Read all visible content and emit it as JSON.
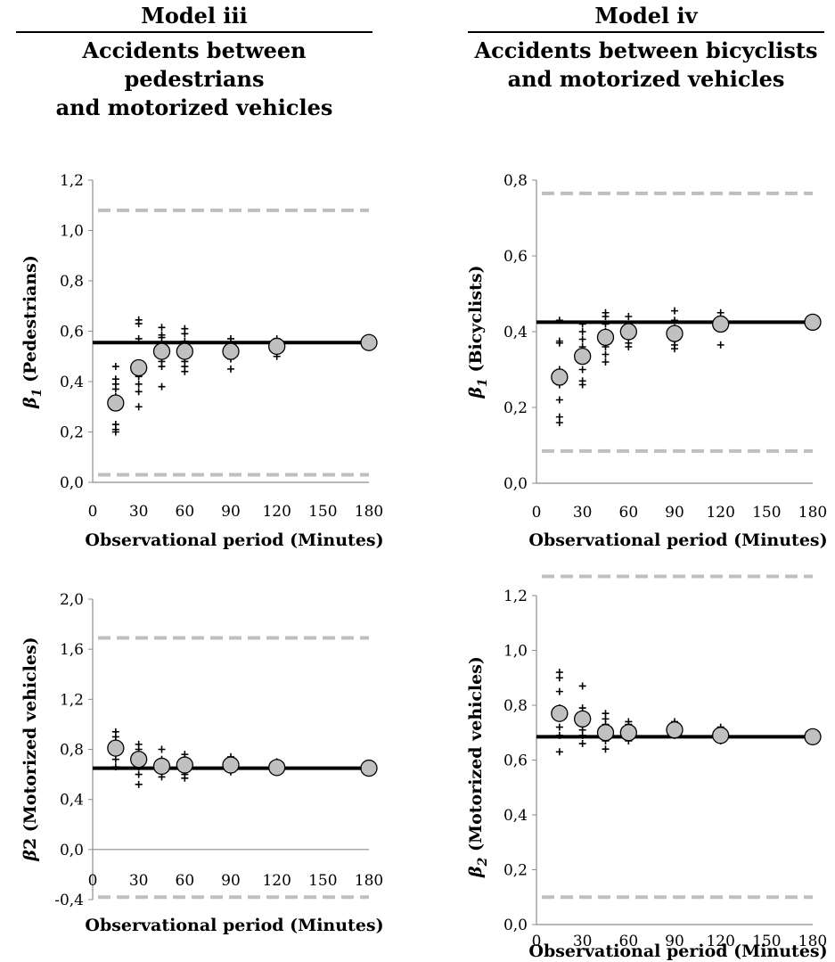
{
  "headers": [
    {
      "model": "Model iii",
      "line1": "Accidents between pedestrians",
      "line2": "and motorized vehicles"
    },
    {
      "model": "Model iv",
      "line1": "Accidents between bicyclists",
      "line2": "and motorized vehicles"
    }
  ],
  "chart_data": [
    {
      "type": "scatter",
      "ylabel": {
        "sym": "β",
        "sub": "1",
        "rest": " (Pedestrians)"
      },
      "xlabel": "Observational period (Minutes)",
      "xlim": [
        0,
        180
      ],
      "xticks": [
        0,
        30,
        60,
        90,
        120,
        150,
        180
      ],
      "ylim": [
        0.0,
        1.2
      ],
      "yticks": [
        "0,0",
        "0,2",
        "0,4",
        "0,6",
        "0,8",
        "1,0",
        "1,2"
      ],
      "ytick_values": [
        0,
        0.2,
        0.4,
        0.6,
        0.8,
        1.0,
        1.2
      ],
      "reference_line": 0.555,
      "bounds": [
        0.03,
        1.08
      ],
      "means": [
        {
          "x": 15,
          "y": 0.315
        },
        {
          "x": 30,
          "y": 0.455
        },
        {
          "x": 45,
          "y": 0.52
        },
        {
          "x": 60,
          "y": 0.52
        },
        {
          "x": 90,
          "y": 0.52
        },
        {
          "x": 120,
          "y": 0.54
        },
        {
          "x": 180,
          "y": 0.555
        }
      ],
      "samples": [
        {
          "x": 15,
          "y": [
            0.2,
            0.21,
            0.23,
            0.34,
            0.37,
            0.39,
            0.41,
            0.46
          ]
        },
        {
          "x": 30,
          "y": [
            0.3,
            0.36,
            0.39,
            0.42,
            0.44,
            0.57,
            0.63,
            0.645
          ]
        },
        {
          "x": 45,
          "y": [
            0.38,
            0.46,
            0.48,
            0.5,
            0.55,
            0.575,
            0.585,
            0.615
          ]
        },
        {
          "x": 60,
          "y": [
            0.44,
            0.46,
            0.48,
            0.52,
            0.54,
            0.56,
            0.59,
            0.61
          ]
        },
        {
          "x": 90,
          "y": [
            0.45,
            0.49,
            0.5,
            0.51,
            0.53,
            0.55,
            0.57
          ]
        },
        {
          "x": 120,
          "y": [
            0.5,
            0.52,
            0.53,
            0.54,
            0.56,
            0.57
          ]
        }
      ],
      "colors": {
        "line": "#000000",
        "bounds": "#bfbfbf",
        "mean_fill": "#c0c0c0"
      },
      "grid": false
    },
    {
      "type": "scatter",
      "ylabel": {
        "sym": "β",
        "sub": "1",
        "rest": " (Bicyclists)"
      },
      "xlabel": "Observational period (Minutes)",
      "xlim": [
        0,
        180
      ],
      "xticks": [
        0,
        30,
        60,
        90,
        120,
        150,
        180
      ],
      "ylim": [
        0.0,
        0.8
      ],
      "yticks": [
        "0,0",
        "0,2",
        "0,4",
        "0,6",
        "0,8"
      ],
      "ytick_values": [
        0,
        0.2,
        0.4,
        0.6,
        0.8
      ],
      "reference_line": 0.425,
      "bounds": [
        0.085,
        0.765
      ],
      "means": [
        {
          "x": 15,
          "y": 0.28
        },
        {
          "x": 30,
          "y": 0.335
        },
        {
          "x": 45,
          "y": 0.385
        },
        {
          "x": 60,
          "y": 0.4
        },
        {
          "x": 90,
          "y": 0.395
        },
        {
          "x": 120,
          "y": 0.42
        },
        {
          "x": 180,
          "y": 0.425
        }
      ],
      "samples": [
        {
          "x": 15,
          "y": [
            0.16,
            0.175,
            0.22,
            0.26,
            0.3,
            0.37,
            0.375,
            0.43
          ]
        },
        {
          "x": 30,
          "y": [
            0.26,
            0.27,
            0.3,
            0.33,
            0.36,
            0.38,
            0.4,
            0.42
          ]
        },
        {
          "x": 45,
          "y": [
            0.32,
            0.34,
            0.36,
            0.37,
            0.4,
            0.42,
            0.44,
            0.45
          ]
        },
        {
          "x": 60,
          "y": [
            0.36,
            0.37,
            0.39,
            0.4,
            0.41,
            0.42,
            0.44
          ]
        },
        {
          "x": 90,
          "y": [
            0.355,
            0.365,
            0.38,
            0.395,
            0.41,
            0.43,
            0.455
          ]
        },
        {
          "x": 120,
          "y": [
            0.365,
            0.41,
            0.42,
            0.43,
            0.44,
            0.45
          ]
        }
      ],
      "colors": {
        "line": "#000000",
        "bounds": "#bfbfbf",
        "mean_fill": "#c0c0c0"
      },
      "grid": false
    },
    {
      "type": "scatter",
      "ylabel": {
        "sym": "β",
        "sub": "",
        "rest": "2 (Motorized vehicles)"
      },
      "xlabel": "Observational period (Minutes)",
      "xlim": [
        0,
        180
      ],
      "xticks": [
        0,
        30,
        60,
        90,
        120,
        150,
        180
      ],
      "ylim": [
        -0.4,
        2.0
      ],
      "yticks": [
        "-0,4",
        "0,0",
        "0,4",
        "0,8",
        "1,2",
        "1,6",
        "2,0"
      ],
      "ytick_values": [
        -0.4,
        0,
        0.4,
        0.8,
        1.2,
        1.6,
        2.0
      ],
      "reference_line": 0.65,
      "bounds": [
        -0.38,
        1.69
      ],
      "means": [
        {
          "x": 15,
          "y": 0.81
        },
        {
          "x": 30,
          "y": 0.72
        },
        {
          "x": 45,
          "y": 0.665
        },
        {
          "x": 60,
          "y": 0.675
        },
        {
          "x": 90,
          "y": 0.675
        },
        {
          "x": 120,
          "y": 0.655
        },
        {
          "x": 180,
          "y": 0.65
        }
      ],
      "samples": [
        {
          "x": 15,
          "y": [
            0.66,
            0.72,
            0.78,
            0.86,
            0.9,
            0.94
          ]
        },
        {
          "x": 30,
          "y": [
            0.52,
            0.6,
            0.66,
            0.7,
            0.76,
            0.8,
            0.84
          ]
        },
        {
          "x": 45,
          "y": [
            0.58,
            0.62,
            0.64,
            0.68,
            0.72,
            0.8
          ]
        },
        {
          "x": 60,
          "y": [
            0.57,
            0.6,
            0.64,
            0.68,
            0.72,
            0.76
          ]
        },
        {
          "x": 90,
          "y": [
            0.62,
            0.65,
            0.68,
            0.7,
            0.74
          ]
        },
        {
          "x": 120,
          "y": [
            0.62,
            0.64,
            0.66,
            0.68,
            0.7
          ]
        }
      ],
      "colors": {
        "line": "#000000",
        "bounds": "#bfbfbf",
        "mean_fill": "#c0c0c0"
      },
      "grid": false
    },
    {
      "type": "scatter",
      "ylabel": {
        "sym": "β",
        "sub": "2",
        "rest": " (Motorized vehicles)"
      },
      "xlabel": "Observational period (Minutes)",
      "xlim": [
        0,
        180
      ],
      "xticks": [
        0,
        30,
        60,
        90,
        120,
        150,
        180
      ],
      "ylim": [
        0.0,
        1.3
      ],
      "yticks": [
        "0,0",
        "0,2",
        "0,4",
        "0,6",
        "0,8",
        "1,0",
        "1,2"
      ],
      "ytick_values": [
        0,
        0.2,
        0.4,
        0.6,
        0.8,
        1.0,
        1.2
      ],
      "reference_line": 0.685,
      "bounds": [
        0.1,
        1.27
      ],
      "means": [
        {
          "x": 15,
          "y": 0.77
        },
        {
          "x": 30,
          "y": 0.75
        },
        {
          "x": 45,
          "y": 0.7
        },
        {
          "x": 60,
          "y": 0.7
        },
        {
          "x": 90,
          "y": 0.71
        },
        {
          "x": 120,
          "y": 0.69
        },
        {
          "x": 180,
          "y": 0.685
        }
      ],
      "samples": [
        {
          "x": 15,
          "y": [
            0.63,
            0.69,
            0.72,
            0.79,
            0.85,
            0.9,
            0.92
          ]
        },
        {
          "x": 30,
          "y": [
            0.66,
            0.69,
            0.71,
            0.73,
            0.77,
            0.79,
            0.87
          ]
        },
        {
          "x": 45,
          "y": [
            0.64,
            0.67,
            0.69,
            0.71,
            0.73,
            0.75,
            0.77
          ]
        },
        {
          "x": 60,
          "y": [
            0.67,
            0.69,
            0.71,
            0.73,
            0.74
          ]
        },
        {
          "x": 90,
          "y": [
            0.69,
            0.7,
            0.71,
            0.72,
            0.73,
            0.74
          ]
        },
        {
          "x": 120,
          "y": [
            0.67,
            0.68,
            0.69,
            0.7,
            0.72
          ]
        }
      ],
      "colors": {
        "line": "#000000",
        "bounds": "#bfbfbf",
        "mean_fill": "#c0c0c0"
      },
      "grid": false
    }
  ]
}
